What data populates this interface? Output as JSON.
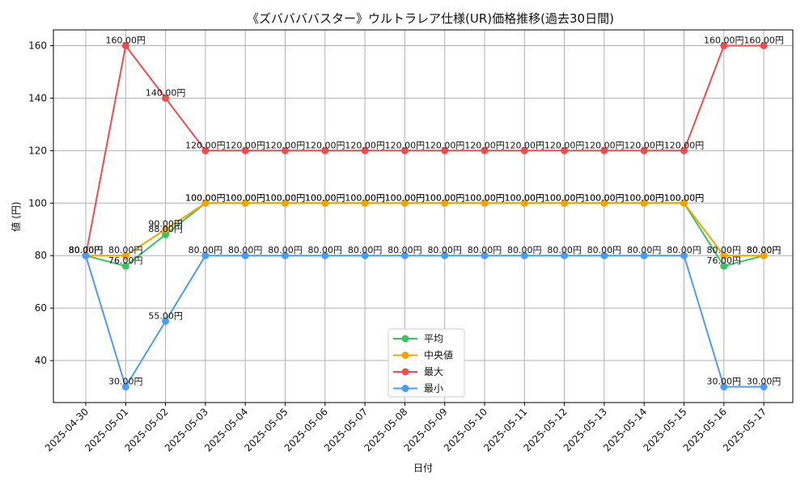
{
  "chart_data": {
    "type": "line",
    "title": "《ズババババスター》ウルトラレア仕様(UR)価格推移(過去30日間)",
    "xlabel": "日付",
    "ylabel": "値 (円)",
    "ylim": [
      24,
      166
    ],
    "yticks": [
      40,
      60,
      80,
      100,
      120,
      140,
      160
    ],
    "grid": true,
    "legend_position": "bottom-center",
    "label_suffix": "円",
    "categories": [
      "2025-04-30",
      "2025-05-01",
      "2025-05-02",
      "2025-05-03",
      "2025-05-04",
      "2025-05-05",
      "2025-05-06",
      "2025-05-07",
      "2025-05-08",
      "2025-05-09",
      "2025-05-10",
      "2025-05-11",
      "2025-05-12",
      "2025-05-13",
      "2025-05-14",
      "2025-05-15",
      "2025-05-16",
      "2025-05-17"
    ],
    "series": [
      {
        "name": "平均",
        "color": "#3cc35e",
        "values": [
          80,
          76,
          88,
          100,
          100,
          100,
          100,
          100,
          100,
          100,
          100,
          100,
          100,
          100,
          100,
          100,
          76,
          80
        ]
      },
      {
        "name": "中央値",
        "color": "#f5a300",
        "values": [
          80,
          80,
          90,
          100,
          100,
          100,
          100,
          100,
          100,
          100,
          100,
          100,
          100,
          100,
          100,
          100,
          80,
          80
        ]
      },
      {
        "name": "最大",
        "color": "#ef4d4d",
        "values": [
          80,
          160,
          140,
          120,
          120,
          120,
          120,
          120,
          120,
          120,
          120,
          120,
          120,
          120,
          120,
          120,
          160,
          160
        ]
      },
      {
        "name": "最小",
        "color": "#4a9cf5",
        "values": [
          80,
          30,
          55,
          80,
          80,
          80,
          80,
          80,
          80,
          80,
          80,
          80,
          80,
          80,
          80,
          80,
          30,
          30
        ]
      }
    ]
  }
}
